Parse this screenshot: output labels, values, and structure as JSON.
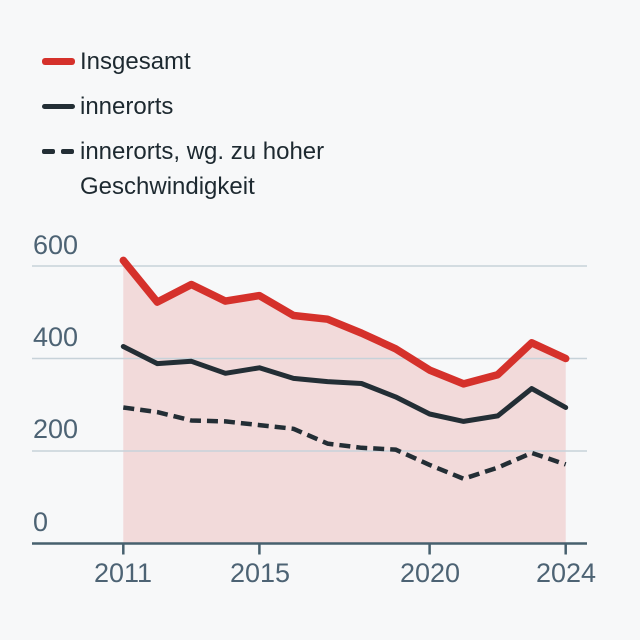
{
  "figure": {
    "background": "#f7f8f9"
  },
  "legend": {
    "items": [
      {
        "id": "insgesamt",
        "label": "Insgesamt",
        "color": "#d5312b",
        "dashed": false
      },
      {
        "id": "innerorts",
        "label": "innerorts",
        "color": "#232e35",
        "dashed": false
      },
      {
        "id": "innerorts-speed",
        "label": "innerorts, wg. zu hoher Geschwindigkeit",
        "color": "#232e35",
        "dashed": true
      }
    ]
  },
  "chart_data": {
    "type": "line",
    "x": [
      2011,
      2012,
      2013,
      2014,
      2015,
      2016,
      2017,
      2018,
      2019,
      2020,
      2021,
      2022,
      2023,
      2024
    ],
    "series": [
      {
        "id": "insgesamt",
        "name": "Insgesamt",
        "color": "#d5312b",
        "dashed": false,
        "area": true,
        "values": [
          612,
          522,
          560,
          524,
          536,
          493,
          485,
          455,
          421,
          375,
          345,
          365,
          434,
          400
        ]
      },
      {
        "id": "innerorts",
        "name": "innerorts",
        "color": "#232e35",
        "dashed": false,
        "area": false,
        "values": [
          426,
          389,
          394,
          368,
          380,
          357,
          350,
          346,
          317,
          280,
          264,
          276,
          335,
          294
        ]
      },
      {
        "id": "innerorts-speed",
        "name": "innerorts, wg. zu hoher Geschwindigkeit",
        "color": "#232e35",
        "dashed": true,
        "area": false,
        "values": [
          294,
          284,
          266,
          264,
          256,
          248,
          216,
          207,
          203,
          170,
          140,
          164,
          196,
          171
        ]
      }
    ],
    "ylim": [
      0,
      620
    ],
    "ytick_values": [
      600,
      400,
      200,
      0
    ],
    "ytick_labels": [
      "600",
      "400",
      "200",
      "0"
    ],
    "xtick_years": [
      2011,
      2015,
      2020,
      2024
    ],
    "xtick_labels": [
      "2011",
      "2015",
      "2020",
      "2024"
    ],
    "grid": "horizontal",
    "legend_position": "top-left",
    "area_fill": "rgba(213,49,43,0.15)",
    "axis_color": "#47606e",
    "gridline_color": "#c7d2d9",
    "tick_label_color": "#4d6374"
  }
}
